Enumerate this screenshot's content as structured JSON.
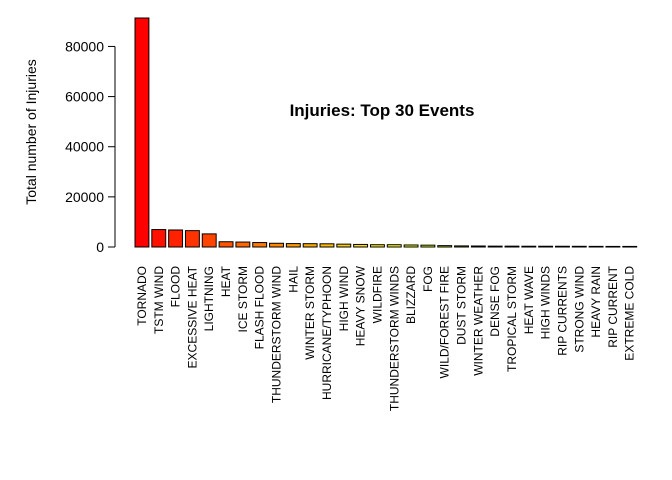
{
  "chart_data": {
    "type": "bar",
    "title": "Injuries: Top 30 Events",
    "xlabel": "",
    "ylabel": "Total number of Injuries",
    "ylim": [
      0,
      91346
    ],
    "yticks": [
      0,
      20000,
      40000,
      60000,
      80000
    ],
    "yticks_labels": [
      "0",
      "20000",
      "40000",
      "60000",
      "80000"
    ],
    "grid": false,
    "legend": "none",
    "categories": [
      "TORNADO",
      "TSTM WIND",
      "FLOOD",
      "EXCESSIVE HEAT",
      "LIGHTNING",
      "HEAT",
      "ICE STORM",
      "FLASH FLOOD",
      "THUNDERSTORM WIND",
      "HAIL",
      "WINTER STORM",
      "HURRICANE/TYPHOON",
      "HIGH WIND",
      "HEAVY SNOW",
      "WILDFIRE",
      "THUNDERSTORM WINDS",
      "BLIZZARD",
      "FOG",
      "WILD/FOREST FIRE",
      "DUST STORM",
      "WINTER WEATHER",
      "DENSE FOG",
      "TROPICAL STORM",
      "HEAT WAVE",
      "HIGH WINDS",
      "RIP CURRENTS",
      "STRONG WIND",
      "HEAVY RAIN",
      "RIP CURRENT",
      "EXTREME COLD"
    ],
    "values": [
      91346,
      6957,
      6789,
      6525,
      5230,
      2100,
      1975,
      1777,
      1488,
      1361,
      1321,
      1275,
      1137,
      1021,
      911,
      908,
      805,
      734,
      545,
      440,
      398,
      342,
      340,
      309,
      302,
      297,
      280,
      251,
      232,
      231
    ],
    "colors": [
      "#FF0000",
      "#FF1100",
      "#FF2200",
      "#FF3300",
      "#FF4400",
      "#FF5500",
      "#FF6600",
      "#FF7700",
      "#FF8800",
      "#FF9900",
      "#FFAA00",
      "#FFBB00",
      "#FFCC00",
      "#FFDD00",
      "#FFEE00",
      "#FFFF00",
      "#EEFF00",
      "#DDFF00",
      "#CCFF00",
      "#BBFF00",
      "#AAFF00",
      "#99FF00",
      "#88FF00",
      "#77FF00",
      "#66FF00",
      "#55FF00",
      "#44FF00",
      "#33FF00",
      "#22FF00",
      "#11FF00"
    ]
  }
}
